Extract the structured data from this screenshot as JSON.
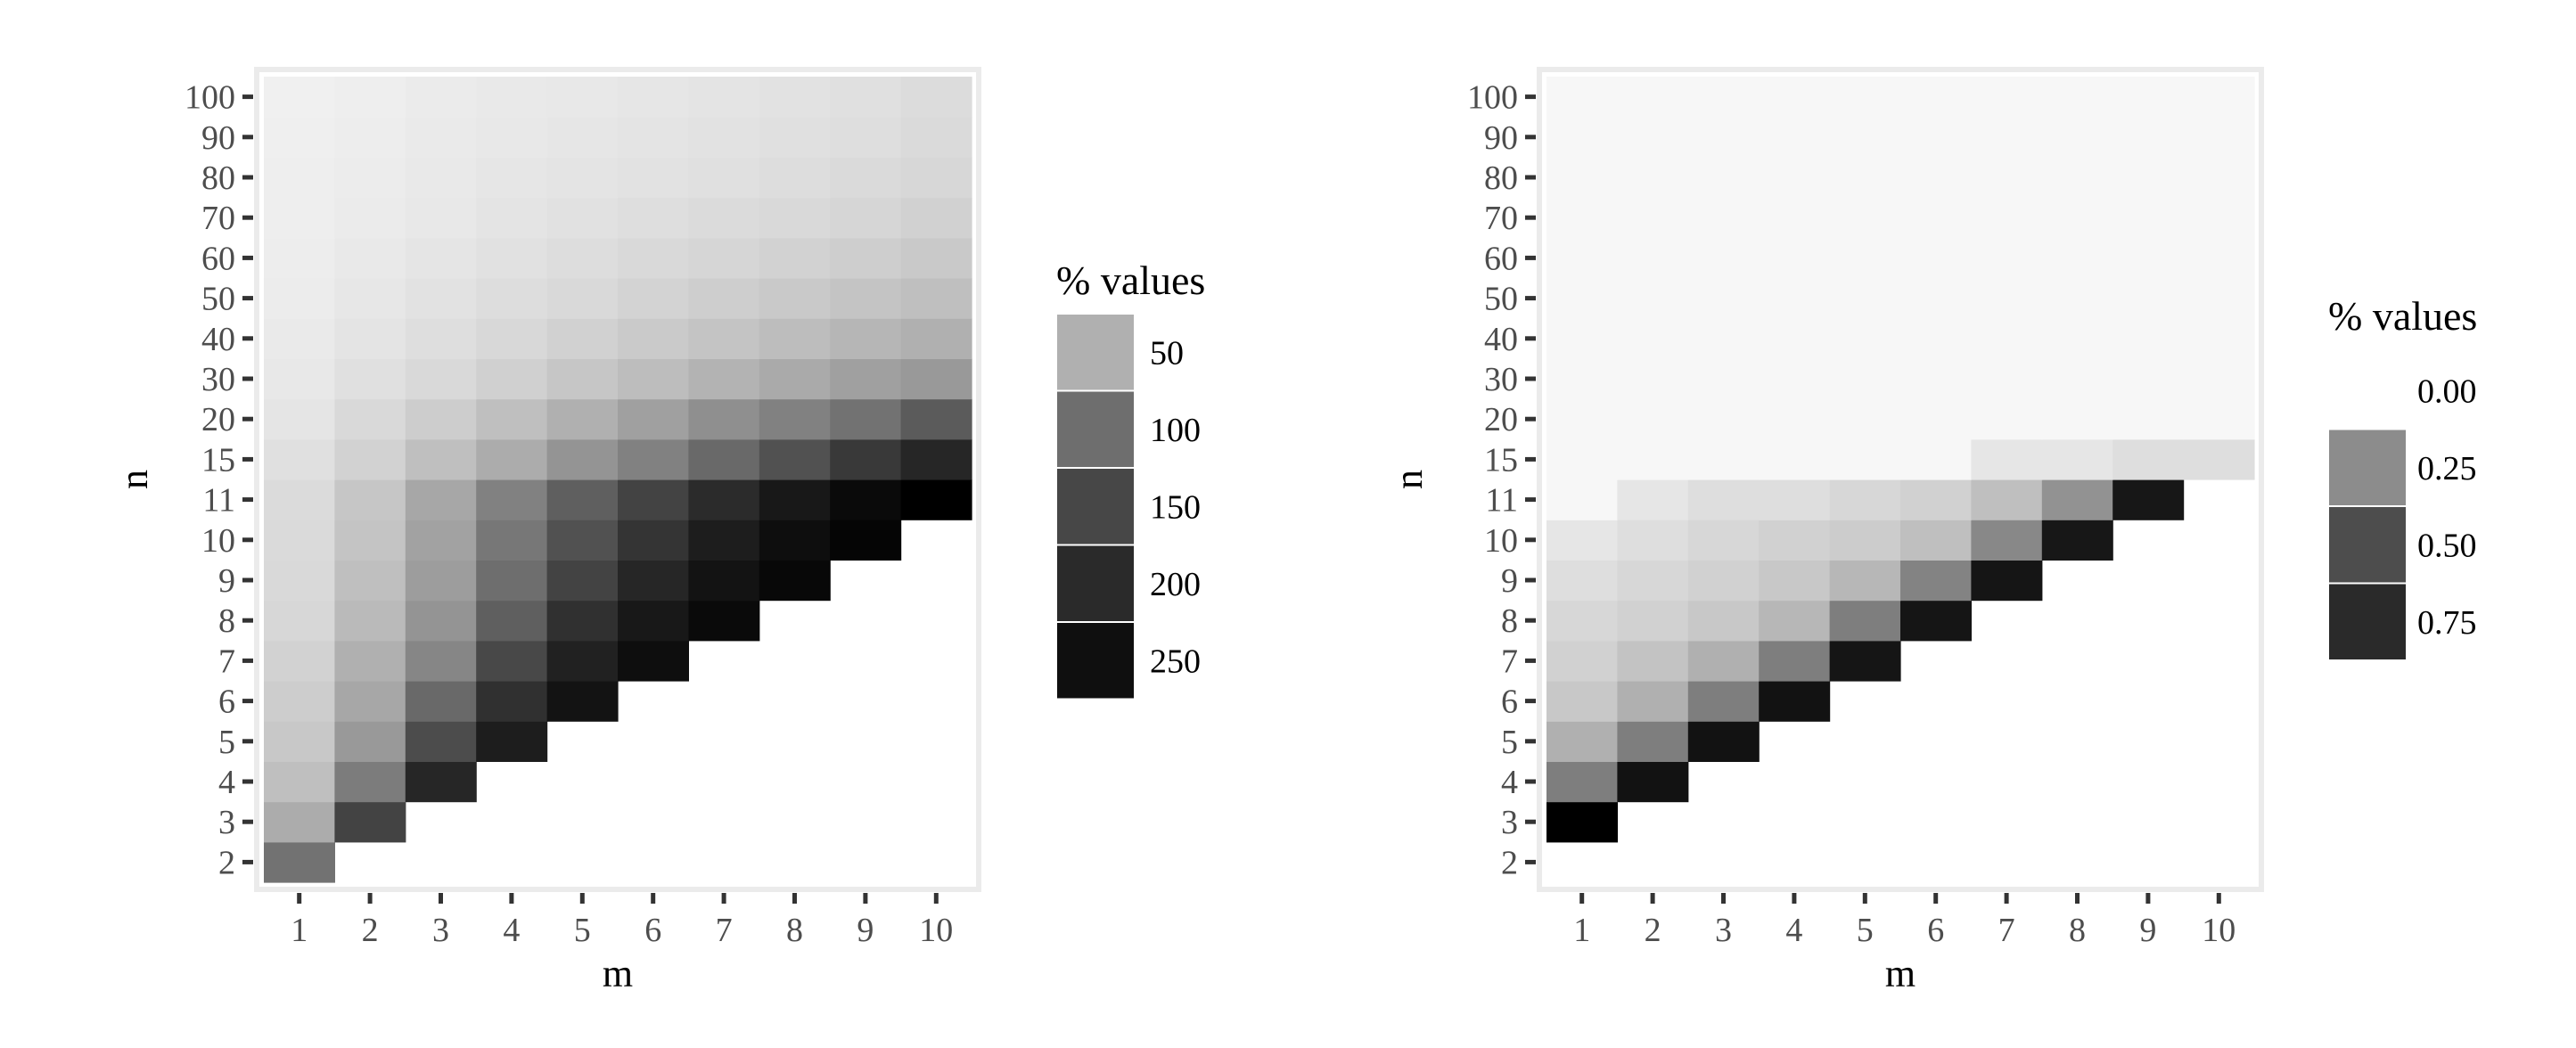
{
  "chart_data": [
    {
      "type": "heatmap",
      "title": "",
      "xlabel": "m",
      "ylabel": "n",
      "x": [
        1,
        2,
        3,
        4,
        5,
        6,
        7,
        8,
        9,
        10
      ],
      "y": [
        2,
        3,
        4,
        5,
        6,
        7,
        8,
        9,
        10,
        11,
        15,
        20,
        30,
        40,
        50,
        60,
        70,
        80,
        90,
        100
      ],
      "x_tick_labels": [
        "1",
        "2",
        "3",
        "4",
        "5",
        "6",
        "7",
        "8",
        "9",
        "10"
      ],
      "y_tick_labels": [
        "2",
        "3",
        "4",
        "5",
        "6",
        "7",
        "8",
        "9",
        "10",
        "11",
        "15",
        "20",
        "30",
        "40",
        "50",
        "60",
        "70",
        "80",
        "90",
        "100"
      ],
      "values": [
        [
          140,
          null,
          null,
          null,
          null,
          null,
          null,
          null,
          null,
          null
        ],
        [
          80,
          190,
          null,
          null,
          null,
          null,
          null,
          null,
          null,
          null
        ],
        [
          60,
          130,
          220,
          null,
          null,
          null,
          null,
          null,
          null,
          null
        ],
        [
          50,
          100,
          180,
          230,
          null,
          null,
          null,
          null,
          null,
          null
        ],
        [
          45,
          85,
          150,
          210,
          240,
          null,
          null,
          null,
          null,
          null
        ],
        [
          40,
          75,
          120,
          185,
          225,
          245,
          null,
          null,
          null,
          null
        ],
        [
          35,
          65,
          105,
          160,
          210,
          235,
          250,
          null,
          null,
          null
        ],
        [
          33,
          60,
          95,
          145,
          190,
          220,
          240,
          252,
          null,
          null
        ],
        [
          31,
          55,
          90,
          135,
          175,
          205,
          230,
          245,
          255,
          null
        ],
        [
          30,
          52,
          85,
          125,
          160,
          190,
          215,
          235,
          250,
          260
        ],
        [
          25,
          40,
          60,
          80,
          105,
          125,
          150,
          175,
          200,
          220
        ],
        [
          20,
          32,
          45,
          60,
          75,
          92,
          110,
          125,
          140,
          165
        ],
        [
          17,
          25,
          33,
          42,
          52,
          62,
          72,
          82,
          92,
          100
        ],
        [
          15,
          21,
          27,
          34,
          41,
          48,
          55,
          62,
          69,
          76
        ],
        [
          13,
          18,
          23,
          28,
          33,
          39,
          44,
          49,
          54,
          60
        ],
        [
          12,
          16,
          20,
          24,
          28,
          32,
          36,
          40,
          44,
          49
        ],
        [
          11,
          14,
          17,
          21,
          24,
          27,
          30,
          33,
          36,
          41
        ],
        [
          10,
          13,
          16,
          19,
          21,
          23,
          25,
          28,
          31,
          35
        ],
        [
          9,
          12,
          15,
          17,
          19,
          21,
          23,
          25,
          27,
          31
        ],
        [
          8,
          11,
          14,
          16,
          17,
          19,
          21,
          23,
          25,
          29
        ]
      ],
      "legend": {
        "title": "% values",
        "breaks": [
          "50",
          "100",
          "150",
          "200",
          "250"
        ],
        "colors": [
          "#b0b0b0",
          "#6e6e6e",
          "#474747",
          "#2a2a2a",
          "#0f0f0f"
        ]
      },
      "grid": false
    },
    {
      "type": "heatmap",
      "title": "",
      "xlabel": "m",
      "ylabel": "n",
      "x": [
        1,
        2,
        3,
        4,
        5,
        6,
        7,
        8,
        9,
        10
      ],
      "y": [
        2,
        3,
        4,
        5,
        6,
        7,
        8,
        9,
        10,
        11,
        15,
        20,
        30,
        40,
        50,
        60,
        70,
        80,
        90,
        100
      ],
      "x_tick_labels": [
        "1",
        "2",
        "3",
        "4",
        "5",
        "6",
        "7",
        "8",
        "9",
        "10"
      ],
      "y_tick_labels": [
        "2",
        "3",
        "4",
        "5",
        "6",
        "7",
        "8",
        "9",
        "10",
        "11",
        "15",
        "20",
        "30",
        "40",
        "50",
        "60",
        "70",
        "80",
        "90",
        "100"
      ],
      "values": [
        [
          null,
          null,
          null,
          null,
          null,
          null,
          null,
          null,
          null,
          null
        ],
        [
          1.0,
          null,
          null,
          null,
          null,
          null,
          null,
          null,
          null,
          null
        ],
        [
          0.3,
          0.88,
          null,
          null,
          null,
          null,
          null,
          null,
          null,
          null
        ],
        [
          0.12,
          0.3,
          0.88,
          null,
          null,
          null,
          null,
          null,
          null,
          null
        ],
        [
          0.06,
          0.12,
          0.3,
          0.88,
          null,
          null,
          null,
          null,
          null,
          null
        ],
        [
          0.04,
          0.07,
          0.12,
          0.3,
          0.86,
          null,
          null,
          null,
          null,
          null
        ],
        [
          0.03,
          0.04,
          0.06,
          0.1,
          0.3,
          0.86,
          null,
          null,
          null,
          null
        ],
        [
          0.02,
          0.03,
          0.04,
          0.06,
          0.1,
          0.28,
          0.86,
          null,
          null,
          null
        ],
        [
          0.01,
          0.02,
          0.03,
          0.04,
          0.05,
          0.08,
          0.26,
          0.85,
          null,
          null
        ],
        [
          0.0,
          0.01,
          0.02,
          0.02,
          0.03,
          0.04,
          0.08,
          0.22,
          0.85,
          null
        ],
        [
          0.0,
          0.0,
          0.0,
          0.0,
          0.0,
          0.0,
          0.01,
          0.01,
          0.02,
          0.02
        ],
        [
          0.0,
          0.0,
          0.0,
          0.0,
          0.0,
          0.0,
          0.0,
          0.0,
          0.0,
          0.0
        ],
        [
          0.0,
          0.0,
          0.0,
          0.0,
          0.0,
          0.0,
          0.0,
          0.0,
          0.0,
          0.0
        ],
        [
          0.0,
          0.0,
          0.0,
          0.0,
          0.0,
          0.0,
          0.0,
          0.0,
          0.0,
          0.0
        ],
        [
          0.0,
          0.0,
          0.0,
          0.0,
          0.0,
          0.0,
          0.0,
          0.0,
          0.0,
          0.0
        ],
        [
          0.0,
          0.0,
          0.0,
          0.0,
          0.0,
          0.0,
          0.0,
          0.0,
          0.0,
          0.0
        ],
        [
          0.0,
          0.0,
          0.0,
          0.0,
          0.0,
          0.0,
          0.0,
          0.0,
          0.0,
          0.0
        ],
        [
          0.0,
          0.0,
          0.0,
          0.0,
          0.0,
          0.0,
          0.0,
          0.0,
          0.0,
          0.0
        ],
        [
          0.0,
          0.0,
          0.0,
          0.0,
          0.0,
          0.0,
          0.0,
          0.0,
          0.0,
          0.0
        ],
        [
          0.0,
          0.0,
          0.0,
          0.0,
          0.0,
          0.0,
          0.0,
          0.0,
          0.0,
          0.0
        ]
      ],
      "legend": {
        "title": "% values",
        "breaks": [
          "0.00",
          "0.25",
          "0.50",
          "0.75"
        ],
        "colors": [
          "#f7f7f7",
          "#8c8c8c",
          "#4d4d4d",
          "#2a2a2a"
        ]
      },
      "grid": false
    }
  ]
}
